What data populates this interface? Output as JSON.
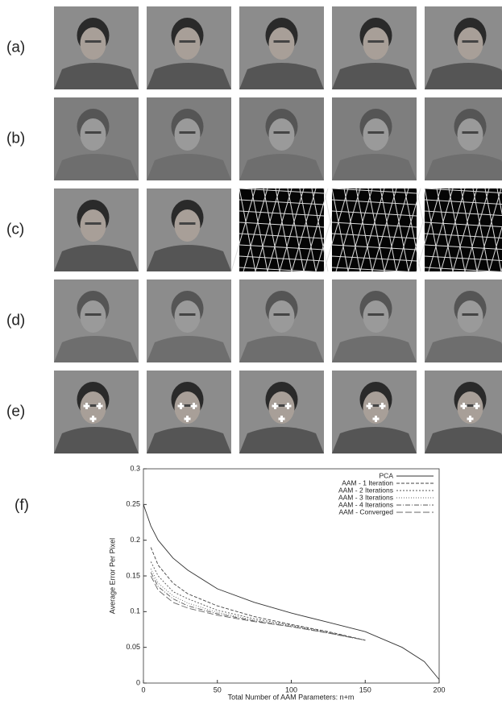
{
  "figure": {
    "row_labels": [
      "(a)",
      "(b)",
      "(c)",
      "(d)",
      "(e)"
    ],
    "chart_label": "(f)"
  },
  "chart_data": {
    "type": "line",
    "x_label": "Total Number of AAM Parameters: n+m",
    "y_label": "Average Error Per Pixel",
    "x": [
      0,
      5,
      10,
      20,
      30,
      50,
      75,
      100,
      125,
      150,
      175,
      190,
      200
    ],
    "xlim": [
      0,
      200
    ],
    "xticks": [
      0,
      50,
      100,
      150,
      200
    ],
    "ylim": [
      0,
      0.3
    ],
    "yticks": [
      0,
      0.05,
      0.1,
      0.15,
      0.2,
      0.25,
      0.3
    ],
    "legend": "top-right",
    "series": [
      {
        "name": "PCA",
        "color": "#333333",
        "dash": "none",
        "values": [
          0.25,
          0.22,
          0.2,
          0.175,
          0.158,
          0.132,
          0.113,
          0.098,
          0.085,
          0.072,
          0.05,
          0.03,
          0.005
        ]
      },
      {
        "name": "AAM - 1 Iteration",
        "color": "#444444",
        "dash": "4 2",
        "values": [
          null,
          0.19,
          0.165,
          0.14,
          0.125,
          0.108,
          0.093,
          0.082,
          0.072,
          0.06,
          null,
          null,
          null
        ]
      },
      {
        "name": "AAM - 2 Iterations",
        "color": "#555555",
        "dash": "2 2",
        "values": [
          null,
          0.17,
          0.15,
          0.128,
          0.118,
          0.102,
          0.09,
          0.081,
          0.071,
          0.06,
          null,
          null,
          null
        ]
      },
      {
        "name": "AAM - 3 Iterations",
        "color": "#666666",
        "dash": "1 2",
        "values": [
          null,
          0.16,
          0.14,
          0.122,
          0.112,
          0.099,
          0.088,
          0.08,
          0.07,
          0.06,
          null,
          null,
          null
        ]
      },
      {
        "name": "AAM - 4 Iterations",
        "color": "#555555",
        "dash": "6 2 1 2",
        "values": [
          null,
          0.155,
          0.135,
          0.118,
          0.108,
          0.097,
          0.087,
          0.079,
          0.07,
          0.06,
          null,
          null,
          null
        ]
      },
      {
        "name": "AAM - Converged",
        "color": "#666666",
        "dash": "8 3",
        "values": [
          null,
          0.15,
          0.13,
          0.113,
          0.105,
          0.095,
          0.086,
          0.079,
          0.07,
          0.06,
          null,
          null,
          null
        ]
      }
    ]
  }
}
